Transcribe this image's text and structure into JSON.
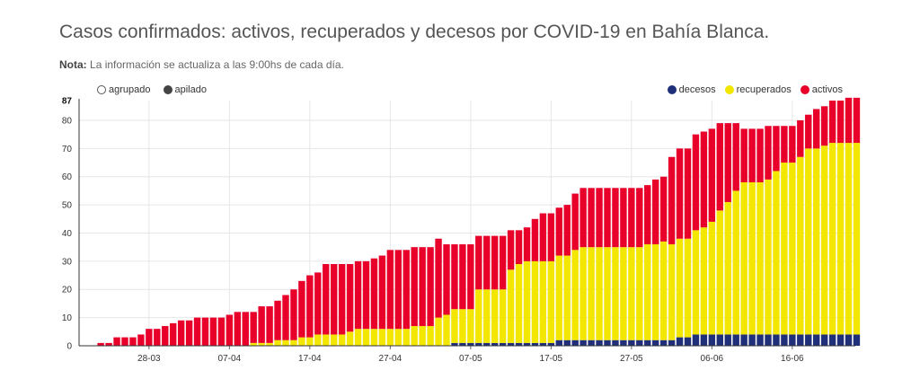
{
  "title": "Casos confirmados: activos, recuperados y decesos por COVID-19 en Bahía Blanca.",
  "note": {
    "label": "Nota:",
    "text": "La información se actualiza a las 9:00hs de cada día."
  },
  "modes": [
    {
      "label": "agrupado",
      "selected": false
    },
    {
      "label": "apilado",
      "selected": true
    }
  ],
  "legend": [
    {
      "label": "decesos",
      "color": "#1f2f7a"
    },
    {
      "label": "recuperados",
      "color": "#f3e600"
    },
    {
      "label": "activos",
      "color": "#e8002b"
    }
  ],
  "chart_data": {
    "type": "bar",
    "stacked": true,
    "y_ticks": [
      0,
      10,
      20,
      30,
      40,
      50,
      60,
      70,
      80
    ],
    "y_max_label": "87",
    "ylim": [
      0,
      87
    ],
    "x_tick_labels": [
      "28-03",
      "07-04",
      "17-04",
      "27-04",
      "07-05",
      "17-05",
      "27-05",
      "06-06",
      "16-06"
    ],
    "x_tick_index": [
      7,
      17,
      27,
      37,
      47,
      57,
      67,
      77,
      87
    ],
    "categories": [
      "21-03",
      "22-03",
      "23-03",
      "24-03",
      "25-03",
      "26-03",
      "27-03",
      "28-03",
      "29-03",
      "30-03",
      "31-03",
      "01-04",
      "02-04",
      "03-04",
      "04-04",
      "05-04",
      "06-04",
      "07-04",
      "08-04",
      "09-04",
      "10-04",
      "11-04",
      "12-04",
      "13-04",
      "14-04",
      "15-04",
      "16-04",
      "17-04",
      "18-04",
      "19-04",
      "20-04",
      "21-04",
      "22-04",
      "23-04",
      "24-04",
      "25-04",
      "26-04",
      "27-04",
      "28-04",
      "29-04",
      "30-04",
      "01-05",
      "02-05",
      "03-05",
      "04-05",
      "05-05",
      "06-05",
      "07-05",
      "08-05",
      "09-05",
      "10-05",
      "11-05",
      "12-05",
      "13-05",
      "14-05",
      "15-05",
      "16-05",
      "17-05",
      "18-05",
      "19-05",
      "20-05",
      "21-05",
      "22-05",
      "23-05",
      "24-05",
      "25-05",
      "26-05",
      "27-05",
      "28-05",
      "29-05",
      "30-05",
      "31-05",
      "01-06",
      "02-06",
      "03-06",
      "04-06",
      "05-06",
      "06-06",
      "07-06",
      "08-06",
      "09-06",
      "10-06",
      "11-06",
      "12-06",
      "13-06",
      "14-06",
      "15-06",
      "16-06",
      "17-06",
      "18-06",
      "19-06",
      "20-06",
      "21-06",
      "22-06",
      "23-06",
      "24-06"
    ],
    "series": [
      {
        "name": "decesos",
        "values": [
          0,
          0,
          0,
          0,
          0,
          0,
          0,
          0,
          0,
          0,
          0,
          0,
          0,
          0,
          0,
          0,
          0,
          0,
          0,
          0,
          0,
          0,
          0,
          0,
          0,
          0,
          0,
          0,
          0,
          0,
          0,
          0,
          0,
          0,
          0,
          0,
          0,
          0,
          0,
          0,
          0,
          0,
          0,
          0,
          0,
          1,
          1,
          1,
          1,
          1,
          1,
          1,
          1,
          1,
          1,
          1,
          1,
          1,
          2,
          2,
          2,
          2,
          2,
          2,
          2,
          2,
          2,
          2,
          2,
          2,
          2,
          2,
          2,
          3,
          3,
          4,
          4,
          4,
          4,
          4,
          4,
          4,
          4,
          4,
          4,
          4,
          4,
          4,
          4,
          4,
          4,
          4,
          4,
          4,
          4,
          4
        ]
      },
      {
        "name": "recuperados",
        "values": [
          0,
          0,
          0,
          0,
          0,
          0,
          0,
          0,
          0,
          0,
          0,
          0,
          0,
          0,
          0,
          0,
          0,
          0,
          0,
          0,
          1,
          1,
          1,
          2,
          2,
          2,
          3,
          3,
          4,
          4,
          4,
          4,
          5,
          6,
          6,
          6,
          6,
          6,
          6,
          6,
          7,
          7,
          7,
          10,
          11,
          12,
          12,
          12,
          19,
          19,
          19,
          19,
          26,
          28,
          29,
          29,
          29,
          29,
          30,
          30,
          32,
          33,
          33,
          33,
          33,
          33,
          33,
          33,
          33,
          34,
          34,
          35,
          34,
          35,
          35,
          37,
          38,
          40,
          44,
          47,
          51,
          54,
          54,
          54,
          55,
          58,
          61,
          61,
          63,
          66,
          66,
          67,
          68,
          68,
          68,
          68
        ]
      },
      {
        "name": "activos",
        "values": [
          0,
          1,
          1,
          3,
          3,
          3,
          4,
          6,
          6,
          7,
          8,
          9,
          9,
          10,
          10,
          10,
          10,
          11,
          12,
          12,
          11,
          13,
          13,
          14,
          16,
          18,
          20,
          22,
          22,
          25,
          25,
          25,
          24,
          24,
          24,
          25,
          26,
          28,
          28,
          28,
          28,
          28,
          28,
          28,
          25,
          23,
          23,
          23,
          19,
          19,
          19,
          19,
          14,
          12,
          12,
          15,
          17,
          17,
          17,
          18,
          20,
          21,
          21,
          21,
          21,
          21,
          21,
          21,
          21,
          21,
          23,
          23,
          31,
          32,
          32,
          34,
          34,
          33,
          31,
          28,
          24,
          19,
          19,
          19,
          19,
          16,
          13,
          13,
          13,
          12,
          14,
          14,
          15,
          15,
          16,
          16
        ]
      }
    ]
  }
}
